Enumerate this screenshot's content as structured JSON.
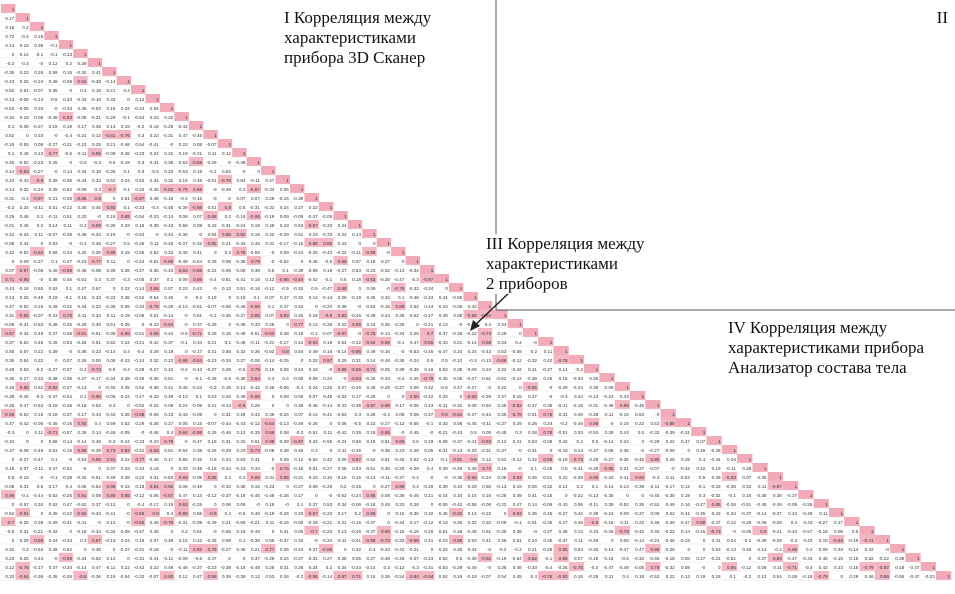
{
  "labels": {
    "q1": [
      "I  Корреляция  между",
      "характеристиками",
      "прибора 3D Сканер"
    ],
    "q2": [
      "II"
    ],
    "q3": [
      "III  Корреляция  между",
      "характеристиками",
      "2 приборов"
    ],
    "q4": [
      "IV  Корреляция  между",
      "характеристиками прибора",
      "Анализатор состава тела"
    ]
  },
  "colors": {
    "highlight": "#f4b6c2",
    "diagonal": "#f2a9b8",
    "grid": "#dcdcdc",
    "divider": "#555555",
    "text": "#333333"
  },
  "chart_data": {
    "type": "heatmap",
    "description_of_cells": "lower-triangular correlation matrix; diagonal cells equal 1",
    "matrix_size": 64,
    "scanner_block_size": 34,
    "analyzer_block_size": 30,
    "diagonal_value": 1,
    "sample_row_3": [
      "0.72",
      "-0.4",
      "0.18",
      "1"
    ],
    "sample_row_4": [
      "0.13",
      "0.15",
      "0.36",
      "-0.1",
      "1"
    ],
    "sample_row_5": [
      "0",
      "0.14",
      "-0.1",
      "-0.1",
      "0.13",
      "1"
    ],
    "sample_row_6": [
      "-0.2",
      "-0.3",
      "-0",
      "0.12",
      "0.2",
      "0.29",
      "1"
    ]
  }
}
